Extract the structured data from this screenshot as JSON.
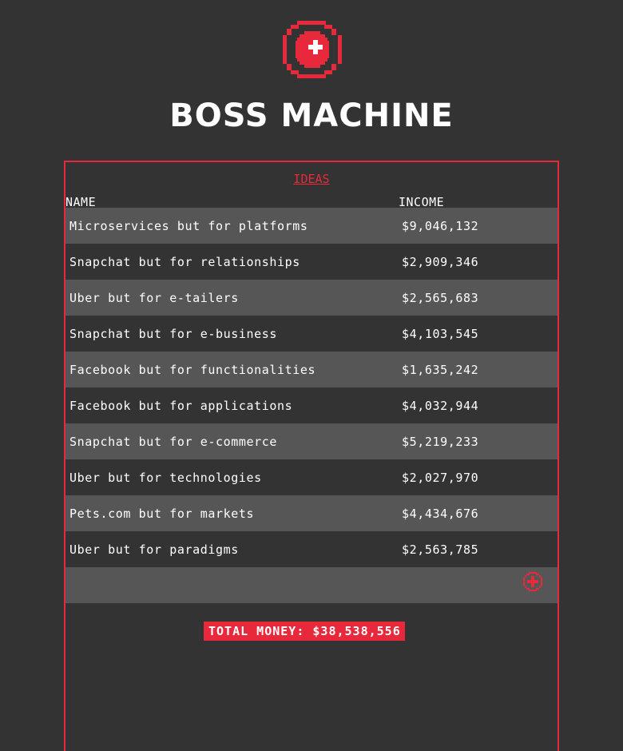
{
  "app": {
    "title": "BOSS MACHINE",
    "logo_icon": "medical-plus-icon"
  },
  "ideas": {
    "link_label": "IDEAS",
    "columns": {
      "name": "NAME",
      "income": "INCOME"
    },
    "rows": [
      {
        "name": "Microservices but for platforms",
        "income": "$9,046,132"
      },
      {
        "name": "Snapchat but for relationships",
        "income": "$2,909,346"
      },
      {
        "name": "Uber but for e-tailers",
        "income": "$2,565,683"
      },
      {
        "name": "Snapchat but for e-business",
        "income": "$4,103,545"
      },
      {
        "name": "Facebook but for functionalities",
        "income": "$1,635,242"
      },
      {
        "name": "Facebook but for applications",
        "income": "$4,032,944"
      },
      {
        "name": "Snapchat but for e-commerce",
        "income": "$5,219,233"
      },
      {
        "name": "Uber but for technologies",
        "income": "$2,027,970"
      },
      {
        "name": "Pets.com but for markets",
        "income": "$4,434,676"
      },
      {
        "name": "Uber but for paradigms",
        "income": "$2,563,785"
      }
    ],
    "add_icon": "add-circle-icon",
    "total_label": "TOTAL MONEY: $38,538,556"
  },
  "colors": {
    "accent": "#e8293c",
    "background": "#333333",
    "row_alt": "#565656",
    "text": "#ffffff"
  }
}
